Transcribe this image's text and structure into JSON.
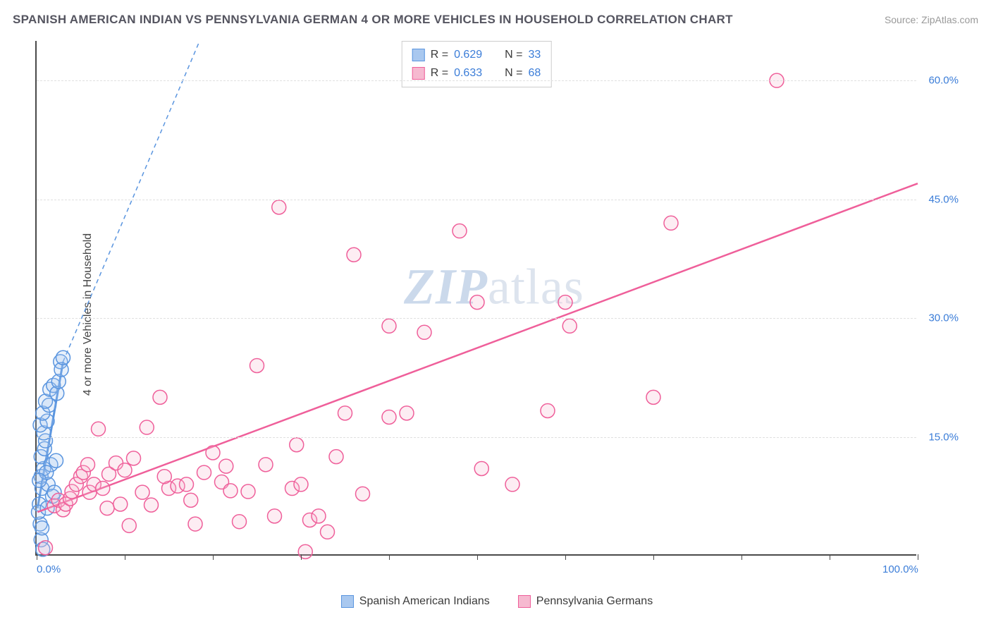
{
  "title": "SPANISH AMERICAN INDIAN VS PENNSYLVANIA GERMAN 4 OR MORE VEHICLES IN HOUSEHOLD CORRELATION CHART",
  "source": "Source: ZipAtlas.com",
  "y_axis_label": "4 or more Vehicles in Household",
  "watermark_prefix": "ZIP",
  "watermark_suffix": "atlas",
  "chart": {
    "type": "scatter",
    "xlim": [
      0,
      100
    ],
    "ylim": [
      0,
      65
    ],
    "x_ticks": [
      0,
      10,
      20,
      30,
      40,
      50,
      60,
      70,
      80,
      90,
      100
    ],
    "x_tick_labels": {
      "0": "0.0%",
      "100": "100.0%"
    },
    "y_grid": [
      15,
      30,
      45,
      60
    ],
    "y_tick_labels": {
      "15": "15.0%",
      "30": "30.0%",
      "45": "45.0%",
      "60": "60.0%"
    },
    "background_color": "#ffffff",
    "grid_color": "#e0e0e0",
    "axis_color": "#4a4a4a",
    "tick_label_color": "#3b7dd8",
    "marker_radius": 10,
    "marker_stroke_width": 1.5,
    "marker_fill_opacity": 0.25
  },
  "series": [
    {
      "key": "blue",
      "label": "Spanish American Indians",
      "color_stroke": "#5a95df",
      "color_fill": "#a9c8ef",
      "r": "0.629",
      "n": "33",
      "trend_solid": {
        "x1": 0.1,
        "y1": 6,
        "x2": 3,
        "y2": 24.5
      },
      "trend_dashed": {
        "x1": 3,
        "y1": 24.5,
        "x2": 18.5,
        "y2": 65
      },
      "points": [
        [
          0.3,
          6.5
        ],
        [
          0.4,
          4.0
        ],
        [
          0.5,
          2.0
        ],
        [
          0.7,
          0.8
        ],
        [
          0.6,
          8.5
        ],
        [
          0.5,
          10.0
        ],
        [
          0.8,
          11.0
        ],
        [
          0.5,
          12.5
        ],
        [
          0.9,
          13.5
        ],
        [
          1.0,
          14.5
        ],
        [
          0.8,
          15.5
        ],
        [
          0.4,
          16.5
        ],
        [
          1.2,
          17.0
        ],
        [
          0.7,
          18.0
        ],
        [
          1.4,
          19.0
        ],
        [
          1.0,
          19.5
        ],
        [
          1.3,
          9.0
        ],
        [
          1.6,
          11.5
        ],
        [
          1.8,
          7.5
        ],
        [
          1.5,
          21.0
        ],
        [
          1.9,
          21.5
        ],
        [
          2.2,
          12.0
        ],
        [
          2.3,
          20.5
        ],
        [
          2.5,
          22.0
        ],
        [
          2.7,
          24.5
        ],
        [
          2.8,
          23.5
        ],
        [
          2.0,
          8.0
        ],
        [
          0.2,
          5.5
        ],
        [
          3.0,
          25.0
        ],
        [
          1.2,
          6.0
        ],
        [
          0.6,
          3.5
        ],
        [
          1.1,
          10.5
        ],
        [
          0.3,
          9.5
        ]
      ]
    },
    {
      "key": "pink",
      "label": "Pennsylvania Germans",
      "color_stroke": "#ef5f9a",
      "color_fill": "#f6b9d0",
      "r": "0.633",
      "n": "68",
      "trend_solid": {
        "x1": 0.1,
        "y1": 5.5,
        "x2": 100,
        "y2": 47
      },
      "trend_dashed": null,
      "points": [
        [
          1.0,
          1.0
        ],
        [
          2.0,
          6.3
        ],
        [
          2.5,
          7.0
        ],
        [
          3.0,
          5.8
        ],
        [
          3.3,
          6.5
        ],
        [
          3.8,
          7.2
        ],
        [
          4.0,
          8.1
        ],
        [
          4.5,
          9.0
        ],
        [
          5.0,
          10.0
        ],
        [
          5.3,
          10.5
        ],
        [
          5.8,
          11.5
        ],
        [
          6.0,
          8.0
        ],
        [
          6.5,
          9.0
        ],
        [
          7.0,
          16.0
        ],
        [
          7.5,
          8.5
        ],
        [
          8.2,
          10.3
        ],
        [
          8.0,
          6.0
        ],
        [
          9.0,
          11.7
        ],
        [
          9.5,
          6.5
        ],
        [
          10.0,
          10.8
        ],
        [
          10.5,
          3.8
        ],
        [
          11.0,
          12.3
        ],
        [
          12.0,
          8.0
        ],
        [
          12.5,
          16.2
        ],
        [
          13.0,
          6.4
        ],
        [
          14.0,
          20.0
        ],
        [
          15.0,
          8.5
        ],
        [
          14.5,
          10.0
        ],
        [
          16.0,
          8.8
        ],
        [
          17.0,
          9.0
        ],
        [
          17.5,
          7.0
        ],
        [
          18.0,
          4.0
        ],
        [
          19.0,
          10.5
        ],
        [
          20.0,
          13.0
        ],
        [
          21.0,
          9.3
        ],
        [
          21.5,
          11.3
        ],
        [
          22.0,
          8.2
        ],
        [
          23.0,
          4.3
        ],
        [
          24.0,
          8.1
        ],
        [
          25.0,
          24.0
        ],
        [
          26.0,
          11.5
        ],
        [
          27.0,
          5.0
        ],
        [
          27.5,
          44.0
        ],
        [
          29.0,
          8.5
        ],
        [
          29.5,
          14.0
        ],
        [
          30.0,
          9.0
        ],
        [
          30.5,
          0.5
        ],
        [
          31.0,
          4.5
        ],
        [
          32.0,
          5.0
        ],
        [
          33.0,
          3.0
        ],
        [
          34.0,
          12.5
        ],
        [
          35.0,
          18.0
        ],
        [
          36.0,
          38.0
        ],
        [
          37.0,
          7.8
        ],
        [
          40.0,
          29.0
        ],
        [
          42.0,
          18.0
        ],
        [
          44.0,
          28.2
        ],
        [
          48.0,
          41.0
        ],
        [
          50.0,
          32.0
        ],
        [
          50.5,
          11.0
        ],
        [
          54.0,
          9.0
        ],
        [
          58.0,
          18.3
        ],
        [
          60.0,
          32.0
        ],
        [
          60.5,
          29.0
        ],
        [
          72.0,
          42.0
        ],
        [
          70.0,
          20.0
        ],
        [
          84.0,
          60.0
        ],
        [
          40.0,
          17.5
        ]
      ]
    }
  ],
  "legend_r": {
    "r_label": "R =",
    "n_label": "N ="
  }
}
